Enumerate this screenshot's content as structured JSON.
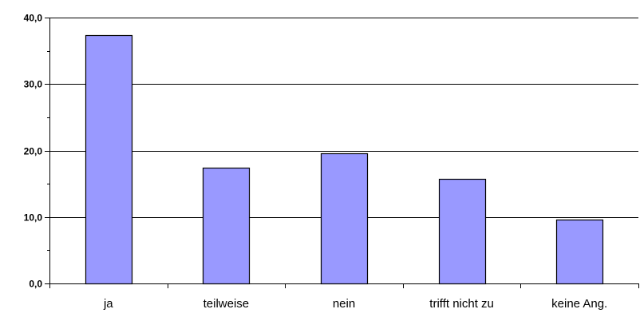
{
  "chart_data": {
    "type": "bar",
    "title": "",
    "xlabel": "",
    "ylabel": "",
    "categories": [
      "ja",
      "teilweise",
      "nein",
      "trifft nicht zu",
      "keine Ang."
    ],
    "values": [
      37.3,
      17.4,
      19.6,
      15.7,
      9.6
    ],
    "ylim": [
      0,
      40
    ],
    "yticks": [
      0,
      10,
      20,
      30,
      40
    ],
    "ytick_labels": [
      "0,0",
      "10,0",
      "20,0",
      "30,0",
      "40,0"
    ],
    "grid": true,
    "legend": "none",
    "colors": {
      "bar_fill": "#9999ff",
      "bar_stroke": "#000000",
      "grid": "#000000",
      "axis": "#000000",
      "background": "#ffffff"
    }
  }
}
